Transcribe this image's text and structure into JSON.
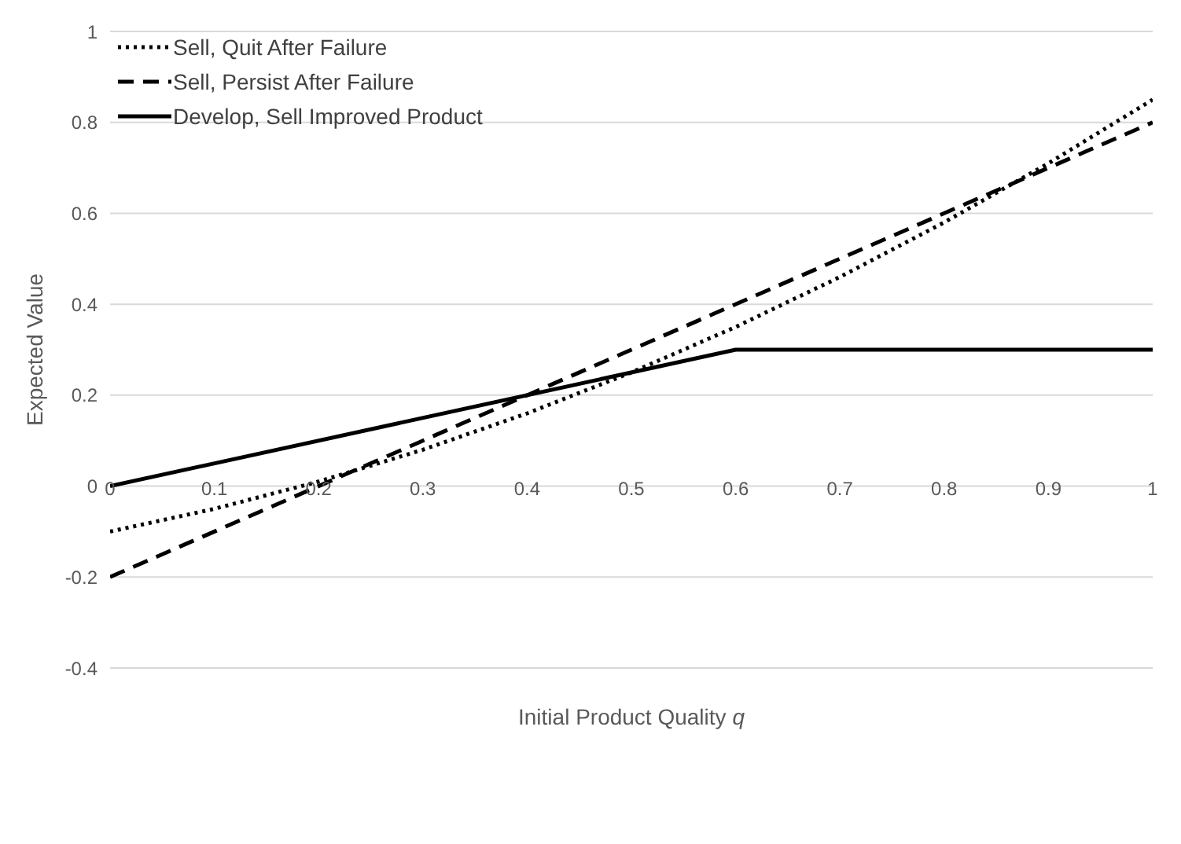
{
  "chart_data": {
    "type": "line",
    "xlabel": "Initial Product Quality q",
    "ylabel": "Expected Value",
    "series": [
      {
        "name": "Sell, Quit After Failure",
        "color": "#000000",
        "line_style": "dotted",
        "x": [
          0,
          0.1,
          0.2,
          0.3,
          0.4,
          0.5,
          0.6,
          0.7,
          0.8,
          0.9,
          1
        ],
        "values": [
          -0.1,
          -0.05,
          0.01,
          0.08,
          0.16,
          0.25,
          0.35,
          0.46,
          0.58,
          0.71,
          0.85
        ]
      },
      {
        "name": "Sell, Persist After Failure",
        "color": "#000000",
        "line_style": "dashed",
        "x": [
          0,
          1
        ],
        "values": [
          -0.2,
          0.8
        ]
      },
      {
        "name": "Develop, Sell Improved Product",
        "color": "#000000",
        "line_style": "solid",
        "x": [
          0,
          0.6,
          1
        ],
        "values": [
          0,
          0.3,
          0.3
        ]
      }
    ],
    "xlim": [
      0,
      1
    ],
    "xticks": [
      0,
      0.1,
      0.2,
      0.3,
      0.4,
      0.5,
      0.6,
      0.7,
      0.8,
      0.9,
      1
    ],
    "ylim": [
      -0.4,
      1
    ],
    "yticks": [
      -0.4,
      -0.2,
      0,
      0.2,
      0.4,
      0.6,
      0.8,
      1
    ],
    "grid": "y",
    "legend": "top left",
    "marker": "none"
  }
}
